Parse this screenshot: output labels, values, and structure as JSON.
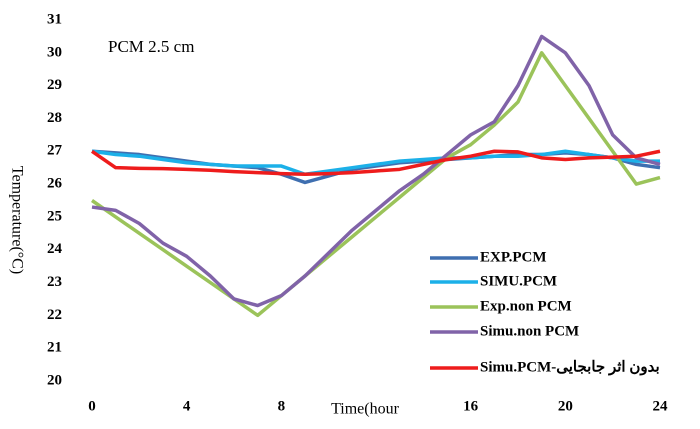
{
  "chart_data": {
    "type": "line",
    "annotation": "PCM 2.5 cm",
    "y_label": "Temperature(°C)",
    "x_label": "Time(hour",
    "x": [
      0,
      1,
      2,
      3,
      4,
      5,
      6,
      7,
      8,
      9,
      10,
      11,
      12,
      13,
      14,
      15,
      16,
      17,
      18,
      19,
      20,
      21,
      22,
      23,
      24
    ],
    "xlim": [
      0,
      24
    ],
    "xticks": [
      0,
      4,
      8,
      16,
      20,
      24
    ],
    "ylim": [
      20,
      31
    ],
    "yticks": [
      20,
      21,
      22,
      23,
      24,
      25,
      26,
      27,
      28,
      29,
      30,
      31
    ],
    "series": [
      {
        "name": "EXP.PCM",
        "color": "#3f6fb0",
        "values": [
          27,
          26.95,
          26.9,
          26.8,
          26.7,
          26.6,
          26.55,
          26.5,
          26.3,
          26.05,
          26.25,
          26.45,
          26.55,
          26.65,
          26.7,
          26.75,
          26.8,
          26.85,
          26.9,
          26.9,
          26.95,
          26.9,
          26.8,
          26.6,
          26.5
        ]
      },
      {
        "name": "SIMU.PCM",
        "color": "#1cb0e8",
        "values": [
          27,
          26.9,
          26.85,
          26.75,
          26.65,
          26.6,
          26.55,
          26.55,
          26.55,
          26.3,
          26.4,
          26.5,
          26.6,
          26.7,
          26.75,
          26.8,
          26.8,
          26.85,
          26.85,
          26.9,
          27.0,
          26.9,
          26.8,
          26.7,
          26.7
        ]
      },
      {
        "name": "Exp.non PCM",
        "color": "#9bc35a",
        "values": [
          25.5,
          25.0,
          24.5,
          24.0,
          23.5,
          23.0,
          22.5,
          22.0,
          22.6,
          23.2,
          23.8,
          24.4,
          25.0,
          25.6,
          26.2,
          26.8,
          27.2,
          27.8,
          28.5,
          30.0,
          29.0,
          28.0,
          27.0,
          26.0,
          26.2
        ]
      },
      {
        "name": "Simu.non PCM",
        "color": "#8063a8",
        "values": [
          25.3,
          25.2,
          24.8,
          24.2,
          23.8,
          23.2,
          22.5,
          22.3,
          22.6,
          23.2,
          23.9,
          24.6,
          25.2,
          25.8,
          26.3,
          26.9,
          27.5,
          27.9,
          29.0,
          30.5,
          30.0,
          29.0,
          27.5,
          26.8,
          26.6
        ]
      },
      {
        "name": "Simu.PCM-بدون اثر جابجایی",
        "color": "#ee1c1c",
        "values": [
          27.0,
          26.5,
          26.48,
          26.47,
          26.45,
          26.42,
          26.38,
          26.35,
          26.32,
          26.3,
          26.32,
          26.35,
          26.4,
          26.45,
          26.6,
          26.75,
          26.85,
          27.0,
          26.98,
          26.8,
          26.75,
          26.8,
          26.82,
          26.85,
          27.0
        ]
      }
    ]
  }
}
